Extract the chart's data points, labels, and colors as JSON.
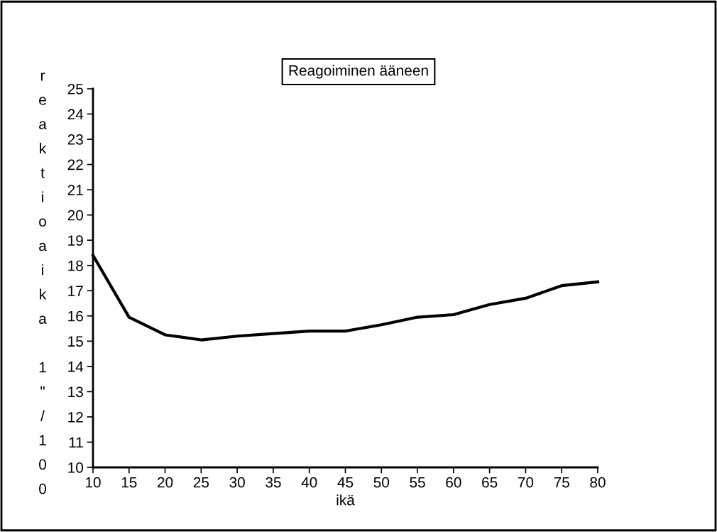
{
  "chart_data": {
    "type": "line",
    "title": "Reagoiminen ääneen",
    "xlabel": "ikä",
    "ylabel": "reaktioaika 1\"/100",
    "x": [
      10,
      15,
      20,
      25,
      30,
      35,
      40,
      45,
      50,
      55,
      60,
      65,
      70,
      75,
      80
    ],
    "series": [
      {
        "color": "#000000",
        "values": [
          18.4,
          15.95,
          15.25,
          15.05,
          15.2,
          15.3,
          15.4,
          15.4,
          15.65,
          15.95,
          16.05,
          16.45,
          16.7,
          17.2,
          17.35
        ]
      }
    ],
    "xlim": [
      10,
      80
    ],
    "xticks": [
      10,
      15,
      20,
      25,
      30,
      35,
      40,
      45,
      50,
      55,
      60,
      65,
      70,
      75,
      80
    ],
    "ylim": [
      10,
      25
    ],
    "yticks": [
      10,
      11,
      12,
      13,
      14,
      15,
      16,
      17,
      18,
      19,
      20,
      21,
      22,
      23,
      24,
      25
    ],
    "grid": false,
    "marker": "none",
    "line_style": "solid"
  }
}
